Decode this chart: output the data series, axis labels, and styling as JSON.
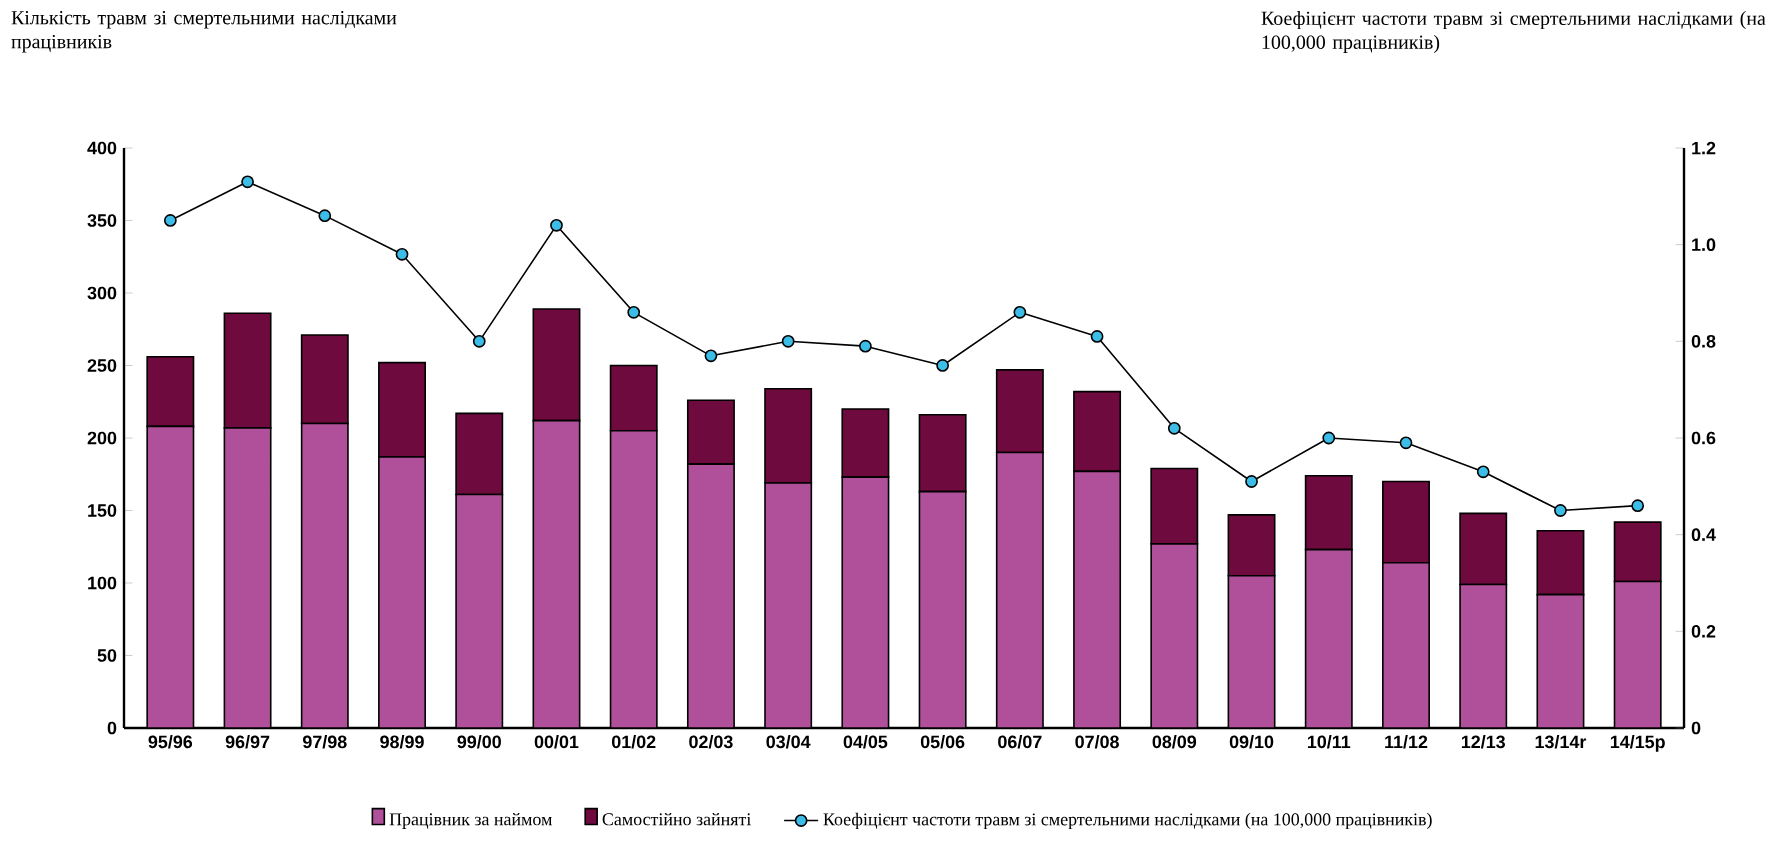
{
  "chart_data": {
    "type": "bar",
    "stacked": true,
    "ylabel": "Кількість травм зі смертельними наслідками працівників",
    "y2label": "Коефіцієнт частоти травм зі смертельними наслідками (на 100,000 працівників)",
    "categories": [
      "95/96",
      "96/97",
      "97/98",
      "98/99",
      "99/00",
      "00/01",
      "01/02",
      "02/03",
      "03/04",
      "04/05",
      "05/06",
      "06/07",
      "07/08",
      "08/09",
      "09/10",
      "10/11",
      "11/12",
      "12/13",
      "13/14r",
      "14/15p"
    ],
    "series": [
      {
        "name": "Працівник за наймом",
        "color": "#b0509a",
        "values": [
          208,
          207,
          210,
          187,
          161,
          212,
          205,
          182,
          169,
          173,
          163,
          190,
          177,
          127,
          105,
          123,
          114,
          99,
          92,
          101
        ]
      },
      {
        "name": "Самостійно зайняті",
        "color": "#6e0a3e",
        "values": [
          48,
          79,
          61,
          65,
          56,
          77,
          45,
          44,
          65,
          47,
          53,
          57,
          55,
          52,
          42,
          51,
          56,
          49,
          44,
          41
        ]
      },
      {
        "name": "Коефіцієнт частоти травм зі смертельними наслідками (на 100,000 працівників)",
        "type": "line",
        "axis": "y2",
        "color": "#3cbde8",
        "marker": "circle",
        "values": [
          1.05,
          1.13,
          1.06,
          0.98,
          0.8,
          1.04,
          0.86,
          0.77,
          0.8,
          0.79,
          0.75,
          0.86,
          0.81,
          0.62,
          0.51,
          0.6,
          0.59,
          0.53,
          0.45,
          0.46
        ]
      }
    ],
    "ylim": [
      0,
      400
    ],
    "yticks": [
      0,
      50,
      100,
      150,
      200,
      250,
      300,
      350,
      400
    ],
    "y2lim": [
      0,
      1.2
    ],
    "y2ticks": [
      0,
      0.2,
      0.4,
      0.6,
      0.8,
      {
        "value": 1,
        "label": "1.0"
      },
      1.2
    ],
    "legend": "bottom",
    "grid": false
  }
}
